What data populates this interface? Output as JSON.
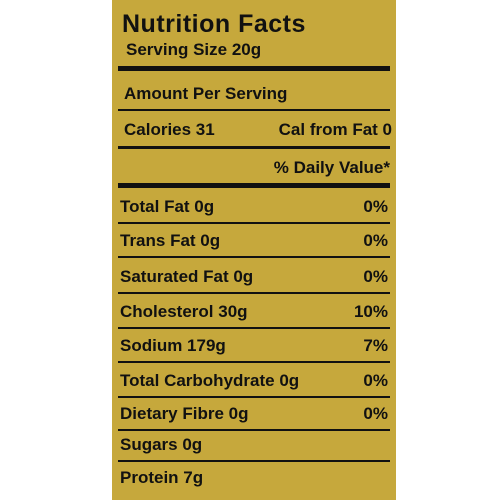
{
  "label": {
    "title": "Nutrition Facts",
    "serving_size": "Serving Size 20g",
    "amount_per_serving": "Amount Per Serving",
    "calories": "Calories 31",
    "cal_from_fat": "Cal from Fat 0",
    "daily_value": "% Daily Value*",
    "rows": [
      [
        "Total Fat 0g",
        "0%"
      ],
      [
        "Trans Fat 0g",
        "0%"
      ],
      [
        "Saturated Fat 0g",
        "0%"
      ],
      [
        "Cholesterol 30g",
        "10%"
      ],
      [
        "Sodium 179g",
        "7%"
      ],
      [
        "Total Carbohydrate 0g",
        "0%"
      ],
      [
        "Dietary Fibre 0g",
        "0%"
      ],
      [
        "Sugars 0g"
      ],
      [
        "Protein 7g"
      ]
    ]
  }
}
